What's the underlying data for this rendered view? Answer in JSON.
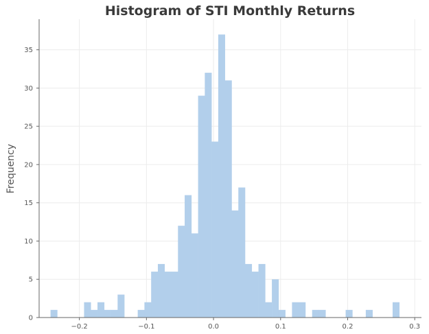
{
  "chart_data": {
    "type": "histogram",
    "title": "Histogram of STI Monthly Returns",
    "xlabel": "",
    "ylabel": "Frequency",
    "bin_width": 0.01,
    "bin_starts": [
      -0.243,
      -0.233,
      -0.223,
      -0.213,
      -0.203,
      -0.193,
      -0.183,
      -0.173,
      -0.163,
      -0.153,
      -0.143,
      -0.133,
      -0.123,
      -0.113,
      -0.103,
      -0.093,
      -0.083,
      -0.073,
      -0.063,
      -0.053,
      -0.043,
      -0.033,
      -0.023,
      -0.013,
      -0.003,
      0.007,
      0.017,
      0.027,
      0.037,
      0.047,
      0.057,
      0.067,
      0.077,
      0.087,
      0.097,
      0.107,
      0.117,
      0.127,
      0.137,
      0.147,
      0.157,
      0.167,
      0.177,
      0.187,
      0.197,
      0.207,
      0.217,
      0.227,
      0.237,
      0.247,
      0.257,
      0.267,
      0.277
    ],
    "counts": [
      1,
      0,
      0,
      0,
      0,
      2,
      1,
      2,
      1,
      1,
      3,
      0,
      0,
      1,
      2,
      6,
      7,
      6,
      6,
      12,
      16,
      11,
      29,
      32,
      23,
      37,
      31,
      14,
      17,
      7,
      6,
      7,
      2,
      5,
      1,
      0,
      2,
      2,
      0,
      1,
      1,
      0,
      0,
      0,
      1,
      0,
      0,
      1,
      0,
      0,
      0,
      2,
      0
    ],
    "xlim": [
      -0.26,
      0.31
    ],
    "ylim": [
      0,
      39
    ],
    "x_ticks": [
      -0.2,
      -0.1,
      0.0,
      0.1,
      0.2,
      0.3
    ],
    "x_tick_labels": [
      "−0.2",
      "−0.1",
      "0.0",
      "0.1",
      "0.2",
      "0.3"
    ],
    "y_ticks": [
      0,
      5,
      10,
      15,
      20,
      25,
      30,
      35
    ],
    "y_tick_labels": [
      "0",
      "5",
      "10",
      "15",
      "20",
      "25",
      "30",
      "35"
    ],
    "grid": true,
    "legend": "none",
    "colors": {
      "bar": "#b2cfeb",
      "grid": "#ececec",
      "axis": "#666666",
      "text": "#555555",
      "title": "#3a3a3a"
    }
  }
}
